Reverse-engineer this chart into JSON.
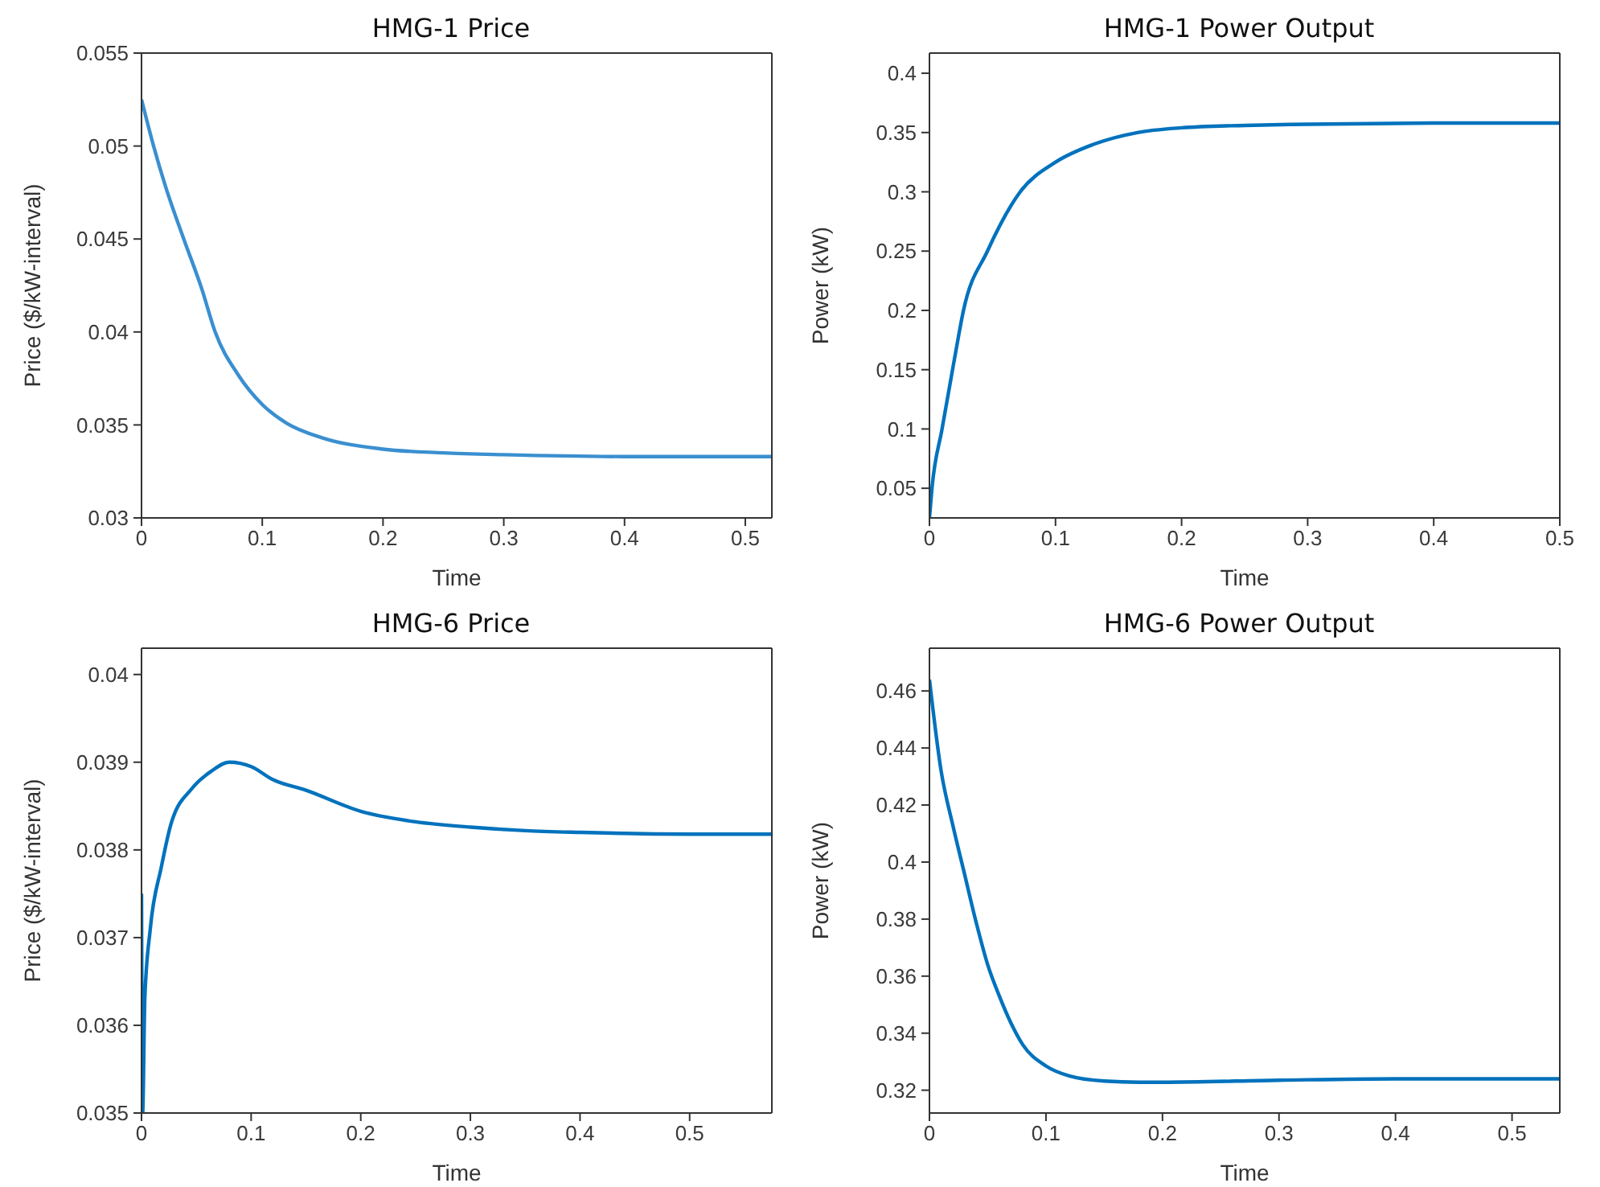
{
  "chart_data": [
    {
      "type": "line",
      "title": "HMG-1 Price",
      "xlabel": "Time",
      "ylabel": "Price ($/kW-interval)",
      "xlim": [
        0,
        0.522
      ],
      "xticks": [
        0,
        0.1,
        0.2,
        0.3,
        0.4,
        0.5
      ],
      "ylim": [
        0.03,
        0.055
      ],
      "yticks": [
        0.03,
        0.035,
        0.04,
        0.045,
        0.05,
        0.055
      ],
      "grid": false,
      "legend": false,
      "marker": "none",
      "line_style": "solid",
      "x": [
        0,
        0.01,
        0.02,
        0.035,
        0.05,
        0.061,
        0.08,
        0.1,
        0.12,
        0.15,
        0.2,
        0.25,
        0.3,
        0.4,
        0.522
      ],
      "series": [
        {
          "color": "#3a8fd0",
          "values": [
            0.0525,
            0.05,
            0.0478,
            0.045,
            0.0423,
            0.04,
            0.0377,
            0.0361,
            0.0351,
            0.0343,
            0.0337,
            0.0335,
            0.0334,
            0.0333,
            0.0333
          ]
        }
      ]
    },
    {
      "type": "line",
      "title": "HMG-1 Power Output",
      "xlabel": "Time",
      "ylabel": "Power  (kW)",
      "xlim": [
        0,
        0.5
      ],
      "xticks": [
        0,
        0.1,
        0.2,
        0.3,
        0.4,
        0.5
      ],
      "ylim": [
        0.025,
        0.417
      ],
      "yticks": [
        0.05,
        0.1,
        0.15,
        0.2,
        0.25,
        0.3,
        0.35,
        0.4
      ],
      "grid": false,
      "legend": false,
      "marker": "none",
      "line_style": "solid",
      "x": [
        0,
        0.002,
        0.01,
        0.02,
        0.027,
        0.046,
        0.072,
        0.1,
        0.13,
        0.165,
        0.2,
        0.25,
        0.3,
        0.4,
        0.5
      ],
      "series": [
        {
          "color": "#0072bd",
          "values": [
            0.025,
            0.05,
            0.1,
            0.16,
            0.2,
            0.25,
            0.3,
            0.325,
            0.34,
            0.35,
            0.354,
            0.356,
            0.357,
            0.358,
            0.358
          ]
        }
      ]
    },
    {
      "type": "line",
      "title": "HMG-6 Price",
      "xlabel": "Time",
      "ylabel": "Price ($/kW-interval)",
      "xlim": [
        0,
        0.575
      ],
      "xticks": [
        0,
        0.1,
        0.2,
        0.3,
        0.4,
        0.5
      ],
      "ylim": [
        0.035,
        0.0403
      ],
      "yticks": [
        0.035,
        0.036,
        0.037,
        0.038,
        0.039,
        0.04
      ],
      "grid": false,
      "legend": false,
      "marker": "none",
      "line_style": "solid",
      "x": [
        0,
        0.001,
        0.003,
        0.008,
        0.018,
        0.027,
        0.046,
        0.064,
        0.08,
        0.1,
        0.12,
        0.15,
        0.2,
        0.25,
        0.3,
        0.35,
        0.4,
        0.5,
        0.575
      ],
      "series": [
        {
          "color": "#0072bd",
          "values": [
            0.0375,
            0.035,
            0.0363,
            0.0371,
            0.0378,
            0.0383,
            0.0387,
            0.0389,
            0.039,
            0.03895,
            0.0388,
            0.03868,
            0.03844,
            0.03832,
            0.03826,
            0.03822,
            0.0382,
            0.03818,
            0.03818
          ]
        }
      ]
    },
    {
      "type": "line",
      "title": "HMG-6 Power Output",
      "xlabel": "Time",
      "ylabel": "Power  (kW)",
      "xlim": [
        0,
        0.541
      ],
      "xticks": [
        0,
        0.1,
        0.2,
        0.3,
        0.4,
        0.5
      ],
      "ylim": [
        0.312,
        0.475
      ],
      "yticks": [
        0.32,
        0.34,
        0.36,
        0.38,
        0.4,
        0.42,
        0.44,
        0.46
      ],
      "grid": false,
      "legend": false,
      "marker": "none",
      "line_style": "solid",
      "x": [
        0,
        0.01,
        0.02,
        0.03,
        0.04,
        0.05,
        0.06,
        0.07,
        0.08,
        0.1,
        0.12,
        0.15,
        0.18,
        0.2,
        0.3,
        0.4,
        0.541
      ],
      "series": [
        {
          "color": "#0072bd",
          "values": [
            0.464,
            0.432,
            0.413,
            0.396,
            0.379,
            0.364,
            0.353,
            0.3435,
            0.336,
            0.3285,
            0.325,
            0.3232,
            0.3228,
            0.3228,
            0.3235,
            0.324,
            0.324
          ]
        }
      ]
    }
  ]
}
